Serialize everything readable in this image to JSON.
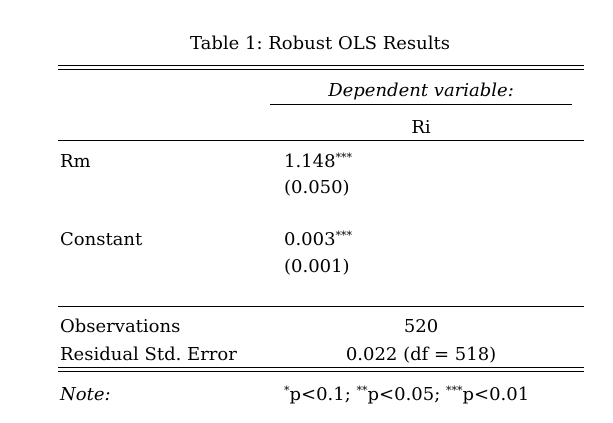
{
  "table": {
    "caption": "Table 1: Robust OLS Results",
    "dependent_variable_header": "Dependent variable:",
    "dependent_variable": "Ri",
    "rows": [
      {
        "label": "Rm",
        "coef": "1.148",
        "stars": "***",
        "se": "(0.050)"
      },
      {
        "label": "Constant",
        "coef": "0.003",
        "stars": "***",
        "se": "(0.001)"
      }
    ],
    "stats": [
      {
        "label": "Observations",
        "value": "520"
      },
      {
        "label": "Residual Std. Error",
        "value": "0.022 (df = 518)"
      }
    ],
    "note": {
      "label": "Note:",
      "levels": [
        {
          "stars": "*",
          "text": "p<0.1; "
        },
        {
          "stars": "**",
          "text": "p<0.05; "
        },
        {
          "stars": "***",
          "text": "p<0.01"
        }
      ]
    }
  }
}
